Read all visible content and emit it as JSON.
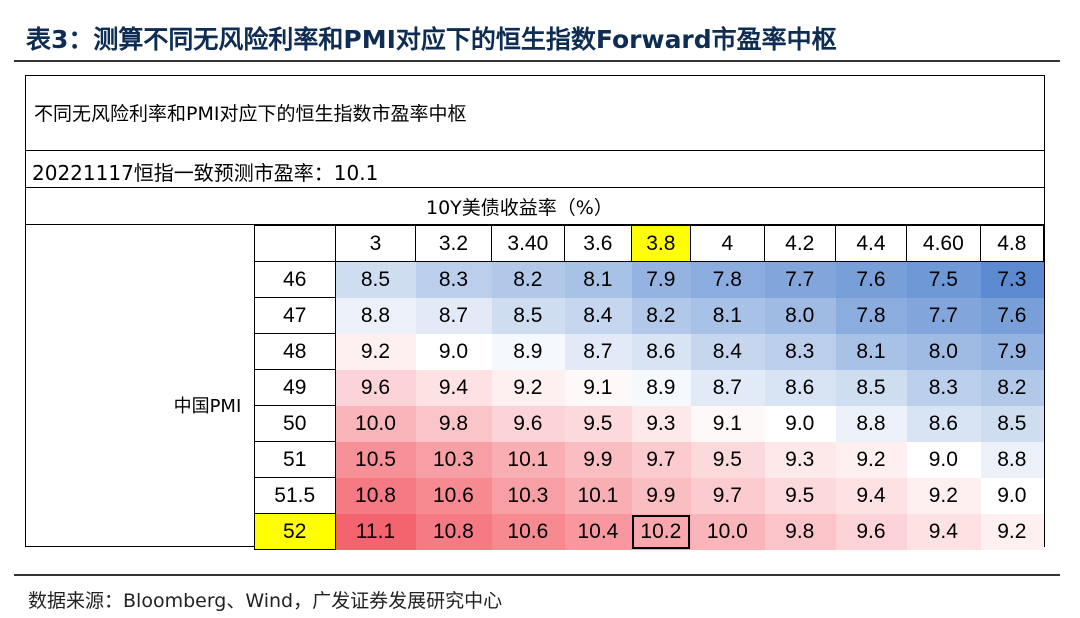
{
  "title": "表3：测算不同无风险利率和PMI对应下的恒生指数Forward市盈率中枢",
  "table": {
    "header": "不同无风险利率和PMI对应下的恒生指数市盈率中枢",
    "consensus": "20221117恒指一致预测市盈率：10.1",
    "col_axis_label": "10Y美债收益率（%）",
    "row_axis_label": "中国PMI",
    "columns": [
      "3",
      "3.2",
      "3.40",
      "3.6",
      "3.8",
      "4",
      "4.2",
      "4.4",
      "4.60",
      "4.8"
    ],
    "highlight_col_index": 4,
    "rows": [
      {
        "pmi": "46",
        "values": [
          "8.5",
          "8.3",
          "8.2",
          "8.1",
          "7.9",
          "7.8",
          "7.7",
          "7.6",
          "7.5",
          "7.3"
        ]
      },
      {
        "pmi": "47",
        "values": [
          "8.8",
          "8.7",
          "8.5",
          "8.4",
          "8.2",
          "8.1",
          "8.0",
          "7.8",
          "7.7",
          "7.6"
        ]
      },
      {
        "pmi": "48",
        "values": [
          "9.2",
          "9.0",
          "8.9",
          "8.7",
          "8.6",
          "8.4",
          "8.3",
          "8.1",
          "8.0",
          "7.9"
        ]
      },
      {
        "pmi": "49",
        "values": [
          "9.6",
          "9.4",
          "9.2",
          "9.1",
          "8.9",
          "8.7",
          "8.6",
          "8.5",
          "8.3",
          "8.2"
        ]
      },
      {
        "pmi": "50",
        "values": [
          "10.0",
          "9.8",
          "9.6",
          "9.5",
          "9.3",
          "9.1",
          "9.0",
          "8.8",
          "8.6",
          "8.5"
        ]
      },
      {
        "pmi": "51",
        "values": [
          "10.5",
          "10.3",
          "10.1",
          "9.9",
          "9.7",
          "9.5",
          "9.3",
          "9.2",
          "9.0",
          "8.8"
        ]
      },
      {
        "pmi": "51.5",
        "values": [
          "10.8",
          "10.6",
          "10.3",
          "10.1",
          "9.9",
          "9.7",
          "9.5",
          "9.4",
          "9.2",
          "9.0"
        ]
      },
      {
        "pmi": "52",
        "values": [
          "11.1",
          "10.8",
          "10.6",
          "10.4",
          "10.2",
          "10.0",
          "9.8",
          "9.6",
          "9.4",
          "9.2"
        ]
      }
    ],
    "highlight_row_pmi": "52",
    "boxed_cell": {
      "row": 7,
      "col": 4
    },
    "color_scale": {
      "low": "#5b8ad0",
      "mid": "#ffffff",
      "high": "#f4646e",
      "low_value": 7.3,
      "mid_value": 9.0,
      "high_value": 11.1
    }
  },
  "source": "数据来源：Bloomberg、Wind，广发证券发展研究中心"
}
